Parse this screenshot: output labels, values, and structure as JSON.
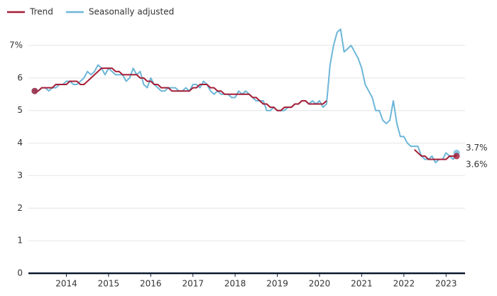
{
  "chart_data": {
    "type": "line",
    "x": [
      2013.25,
      2013.333,
      2013.417,
      2013.5,
      2013.583,
      2013.667,
      2013.75,
      2013.833,
      2013.917,
      2014,
      2014.083,
      2014.167,
      2014.25,
      2014.333,
      2014.417,
      2014.5,
      2014.583,
      2014.667,
      2014.75,
      2014.833,
      2014.917,
      2015,
      2015.083,
      2015.167,
      2015.25,
      2015.333,
      2015.417,
      2015.5,
      2015.583,
      2015.667,
      2015.75,
      2015.833,
      2015.917,
      2016,
      2016.083,
      2016.167,
      2016.25,
      2016.333,
      2016.417,
      2016.5,
      2016.583,
      2016.667,
      2016.75,
      2016.833,
      2016.917,
      2017,
      2017.083,
      2017.167,
      2017.25,
      2017.333,
      2017.417,
      2017.5,
      2017.583,
      2017.667,
      2017.75,
      2017.833,
      2017.917,
      2018,
      2018.083,
      2018.167,
      2018.25,
      2018.333,
      2018.417,
      2018.5,
      2018.583,
      2018.667,
      2018.75,
      2018.833,
      2018.917,
      2019,
      2019.083,
      2019.167,
      2019.25,
      2019.333,
      2019.417,
      2019.5,
      2019.583,
      2019.667,
      2019.75,
      2019.833,
      2019.917,
      2020,
      2020.083,
      2020.167,
      2020.25,
      2020.333,
      2020.417,
      2020.5,
      2020.583,
      2020.667,
      2020.75,
      2020.833,
      2020.917,
      2021,
      2021.083,
      2021.167,
      2021.25,
      2021.333,
      2021.417,
      2021.5,
      2021.583,
      2021.667,
      2021.75,
      2021.833,
      2021.917,
      2022,
      2022.083,
      2022.167,
      2022.25,
      2022.333,
      2022.417,
      2022.5,
      2022.583,
      2022.667,
      2022.75,
      2022.833,
      2022.917,
      2023,
      2023.083,
      2023.167,
      2023.25
    ],
    "series": [
      {
        "name": "Seasonally adjusted",
        "color": "#6cb6d8",
        "end_label": "3.7%",
        "values": [
          5.6,
          5.6,
          5.7,
          5.7,
          5.6,
          5.7,
          5.7,
          5.8,
          5.8,
          5.9,
          5.9,
          5.8,
          5.8,
          5.9,
          6.0,
          6.2,
          6.1,
          6.2,
          6.4,
          6.3,
          6.1,
          6.3,
          6.2,
          6.1,
          6.1,
          6.1,
          5.9,
          6.0,
          6.3,
          6.1,
          6.2,
          5.8,
          5.7,
          6.0,
          5.8,
          5.7,
          5.6,
          5.6,
          5.7,
          5.7,
          5.7,
          5.6,
          5.6,
          5.7,
          5.6,
          5.8,
          5.8,
          5.7,
          5.9,
          5.8,
          5.6,
          5.5,
          5.6,
          5.5,
          5.5,
          5.5,
          5.4,
          5.4,
          5.6,
          5.5,
          5.6,
          5.5,
          5.4,
          5.3,
          5.3,
          5.3,
          5.0,
          5.0,
          5.1,
          5.0,
          5.0,
          5.0,
          5.1,
          5.1,
          5.2,
          5.2,
          5.3,
          5.3,
          5.2,
          5.3,
          5.2,
          5.3,
          5.1,
          5.2,
          6.4,
          7.0,
          7.4,
          7.5,
          6.8,
          6.9,
          7.0,
          6.8,
          6.6,
          6.3,
          5.8,
          5.6,
          5.4,
          5.0,
          5.0,
          4.7,
          4.6,
          4.7,
          5.3,
          4.6,
          4.2,
          4.2,
          4.0,
          3.9,
          3.9,
          3.9,
          3.6,
          3.5,
          3.5,
          3.6,
          3.4,
          3.5,
          3.5,
          3.7,
          3.6,
          3.5,
          3.7
        ]
      },
      {
        "name": "Trend",
        "color": "#a51d36",
        "end_label": "3.6%",
        "values": [
          5.6,
          5.6,
          5.7,
          5.7,
          5.7,
          5.7,
          5.8,
          5.8,
          5.8,
          5.8,
          5.9,
          5.9,
          5.9,
          5.8,
          5.8,
          5.9,
          6.0,
          6.1,
          6.2,
          6.3,
          6.3,
          6.3,
          6.3,
          6.2,
          6.2,
          6.1,
          6.1,
          6.1,
          6.1,
          6.1,
          6.0,
          6.0,
          5.9,
          5.9,
          5.8,
          5.8,
          5.7,
          5.7,
          5.7,
          5.6,
          5.6,
          5.6,
          5.6,
          5.6,
          5.6,
          5.7,
          5.7,
          5.8,
          5.8,
          5.8,
          5.7,
          5.7,
          5.6,
          5.6,
          5.5,
          5.5,
          5.5,
          5.5,
          5.5,
          5.5,
          5.5,
          5.5,
          5.4,
          5.4,
          5.3,
          5.2,
          5.2,
          5.1,
          5.1,
          5.0,
          5.0,
          5.1,
          5.1,
          5.1,
          5.2,
          5.2,
          5.3,
          5.3,
          5.2,
          5.2,
          5.2,
          5.2,
          5.2,
          5.3,
          null,
          null,
          null,
          null,
          null,
          null,
          null,
          null,
          null,
          null,
          null,
          null,
          null,
          null,
          null,
          null,
          null,
          null,
          null,
          null,
          null,
          null,
          null,
          null,
          3.8,
          3.7,
          3.6,
          3.6,
          3.5,
          3.5,
          3.5,
          3.5,
          3.5,
          3.5,
          3.6,
          3.6,
          3.6
        ]
      }
    ],
    "legend_order": [
      1,
      0
    ],
    "xlim": [
      2013.1,
      2023.45
    ],
    "xticks": [
      2014,
      2015,
      2016,
      2017,
      2018,
      2019,
      2020,
      2021,
      2022,
      2023
    ],
    "ylim": [
      0,
      7
    ],
    "yticks": [
      0,
      1,
      2,
      3,
      4,
      5,
      6,
      {
        "value": 7,
        "label": "7%"
      }
    ],
    "grid": true
  }
}
